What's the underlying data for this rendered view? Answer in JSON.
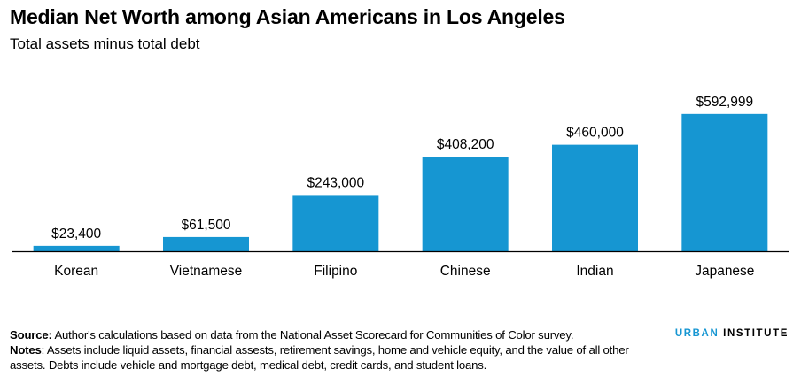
{
  "header": {
    "title": "Median Net Worth among Asian Americans in Los Angeles",
    "subtitle": "Total assets minus total debt"
  },
  "chart_data": {
    "type": "bar",
    "title": "Median Net Worth among Asian Americans in Los Angeles",
    "subtitle": "Total assets minus total debt",
    "categories": [
      "Korean",
      "Vietnamese",
      "Filipino",
      "Chinese",
      "Indian",
      "Japanese"
    ],
    "values": [
      23400,
      61500,
      243000,
      408200,
      460000,
      592999
    ],
    "data_labels": [
      "$23,400",
      "$61,500",
      "$243,000",
      "$408,200",
      "$460,000",
      "$592,999"
    ],
    "xlabel": "",
    "ylabel": "",
    "ylim": [
      0,
      600000
    ],
    "grid": false,
    "bar_color": "#1696d2"
  },
  "footer": {
    "source_label": "Source:",
    "source_text": " Author's calculations based on data from the National Asset Scorecard for Communities of Color survey.",
    "notes_label": "Notes",
    "notes_text": ": Assets include liquid assets, financial assests, retirement savings, home and vehicle equity, and the value of all other assets. Debts include vehicle and mortgage debt, medical debt, credit cards, and student loans.",
    "logo_part1": "URBAN",
    "logo_part2": " INSTITUTE"
  }
}
